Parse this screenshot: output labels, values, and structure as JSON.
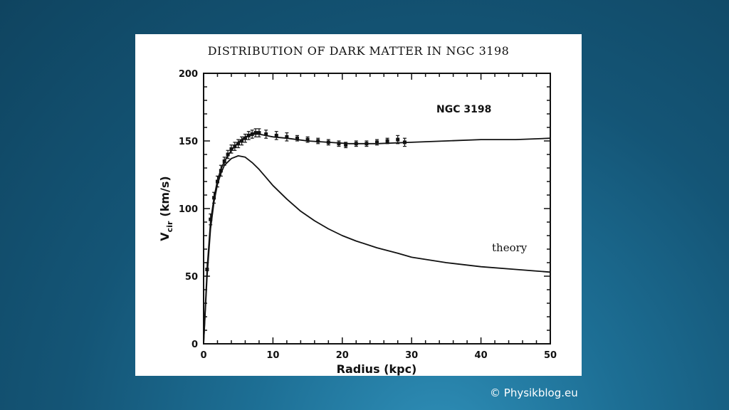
{
  "footer": {
    "copyright": "© Physikblog.eu"
  },
  "chart_data": {
    "type": "scatter",
    "title": "DISTRIBUTION OF DARK MATTER IN NGC 3198",
    "xlabel": "Radius (kpc)",
    "ylabel": "V_cir (km/s)",
    "ylabel_main": "V",
    "ylabel_sub": "cir",
    "ylabel_unit": "(km/s)",
    "xlim": [
      0,
      50
    ],
    "ylim": [
      0,
      200
    ],
    "x_ticks": [
      0,
      10,
      20,
      30,
      40,
      50
    ],
    "y_ticks": [
      0,
      50,
      100,
      150,
      200
    ],
    "grid": false,
    "annotations": [
      "NGC 3198",
      "theory"
    ],
    "series": [
      {
        "style": "points-with-error-bars",
        "x": [
          0.5,
          1.0,
          1.5,
          2.0,
          2.5,
          3.0,
          3.5,
          4.0,
          4.5,
          5.0,
          5.5,
          6.0,
          6.5,
          7.0,
          7.5,
          8.0,
          9.0,
          10.5,
          12.0,
          13.5,
          15.0,
          16.5,
          18.0,
          19.5,
          20.5,
          22.0,
          23.5,
          25.0,
          26.5,
          28.0,
          29.0
        ],
        "y": [
          55,
          92,
          108,
          120,
          128,
          135,
          140,
          144,
          146,
          148,
          150,
          152,
          154,
          155,
          156,
          156,
          155,
          154,
          153,
          152,
          151,
          150,
          149,
          148,
          147,
          148,
          148,
          149,
          150,
          151,
          149
        ],
        "yerr": [
          5,
          4,
          4,
          4,
          4,
          3,
          3,
          3,
          3,
          3,
          3,
          3,
          3,
          3,
          3,
          3,
          3,
          3,
          3,
          2,
          2,
          2,
          2,
          2,
          2,
          2,
          2,
          2,
          2,
          3,
          3
        ]
      },
      {
        "style": "line",
        "x": [
          0,
          0.5,
          1,
          1.5,
          2,
          2.5,
          3,
          4,
          5,
          6,
          7,
          8,
          9,
          10,
          12,
          15,
          18,
          21,
          25,
          30,
          35,
          40,
          45,
          50
        ],
        "y": [
          0,
          55,
          90,
          108,
          121,
          129,
          135,
          143,
          149,
          153,
          155,
          155,
          154,
          153,
          152,
          150,
          149,
          148,
          148,
          149,
          150,
          151,
          151,
          152
        ]
      },
      {
        "style": "line",
        "x": [
          0,
          0.5,
          1,
          1.5,
          2,
          2.5,
          3,
          4,
          5,
          6,
          7,
          8,
          9,
          10,
          12,
          14,
          16,
          18,
          20,
          22,
          25,
          28,
          30,
          35,
          40,
          45,
          50
        ],
        "y": [
          0,
          50,
          85,
          105,
          118,
          126,
          132,
          137,
          139,
          138,
          134,
          129,
          123,
          117,
          107,
          98,
          91,
          85,
          80,
          76,
          71,
          67,
          64,
          60,
          57,
          55,
          53
        ]
      }
    ]
  }
}
